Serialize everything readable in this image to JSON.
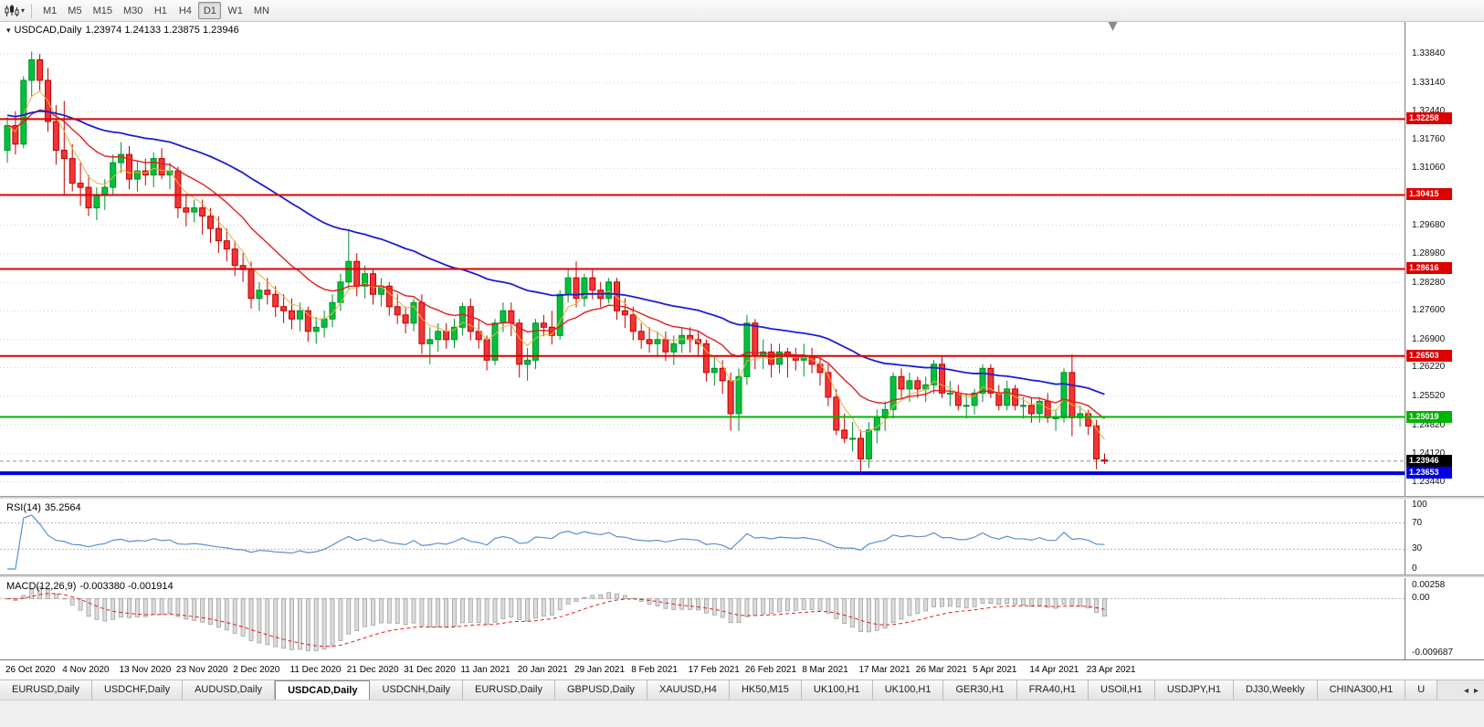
{
  "toolbar": {
    "timeframes": [
      "M1",
      "M5",
      "M15",
      "M30",
      "H1",
      "H4",
      "D1",
      "W1",
      "MN"
    ],
    "active_timeframe": "D1",
    "dropdown_icon": "▾"
  },
  "chart": {
    "title_symbol": "USDCAD,Daily",
    "title_ohlc": "1.23974 1.24133 1.23875 1.23946",
    "oct_arrow": "▾",
    "price_min": 1.231,
    "price_max": 1.3462,
    "price_axis_labels": [
      "1.33840",
      "1.33140",
      "1.32440",
      "1.31760",
      "1.31060",
      "1.30360",
      "1.29680",
      "1.28980",
      "1.28280",
      "1.27600",
      "1.26900",
      "1.26220",
      "1.25520",
      "1.24820",
      "1.24120",
      "1.23440"
    ],
    "bid": {
      "label": "1.23946",
      "price": 1.23946,
      "box_color": "#000000",
      "text_color": "#ffffff"
    },
    "hlines": [
      {
        "price": 1.32258,
        "label": "1.32258",
        "color": "#dd0000",
        "width": 2
      },
      {
        "price": 1.30415,
        "label": "1.30415",
        "color": "#dd0000",
        "width": 2
      },
      {
        "price": 1.28616,
        "label": "1.28616",
        "color": "#dd0000",
        "width": 2
      },
      {
        "price": 1.26503,
        "label": "1.26503",
        "color": "#dd0000",
        "width": 2
      },
      {
        "price": 1.25019,
        "label": "1.25019",
        "color": "#00b400",
        "width": 2
      },
      {
        "price": 1.23653,
        "label": "1.23653",
        "color": "#0000e0",
        "width": 4
      }
    ],
    "colors": {
      "bull_fill": "#00c23a",
      "bull_edge": "#008f2a",
      "bear_fill": "#f23535",
      "bear_edge": "#c00000",
      "ma_fast": "#e8b23a",
      "ma_mid": "#e02020",
      "ma_slow": "#1d1dd4",
      "grid": "#d0d0d0",
      "bid_line": "#909090"
    }
  },
  "rsi": {
    "label": "RSI(14)",
    "value": "35.2564",
    "scale_labels": [
      "100",
      "70",
      "30",
      "0"
    ],
    "levels": [
      70,
      30
    ],
    "color": "#5c8fce"
  },
  "macd": {
    "label": "MACD(12,26,9)",
    "values": "-0.003380 -0.001914",
    "scale_top": "0.00258",
    "scale_zero": "0.00",
    "scale_bottom": "-0.009687",
    "histogram_color": "#c0c0c0",
    "signal_color": "#e02020"
  },
  "time_axis": {
    "bars_per_label": 7,
    "labels": [
      "26 Oct 2020",
      "4 Nov 2020",
      "13 Nov 2020",
      "23 Nov 2020",
      "2 Dec 2020",
      "11 Dec 2020",
      "21 Dec 2020",
      "31 Dec 2020",
      "11 Jan 2021",
      "20 Jan 2021",
      "29 Jan 2021",
      "8 Feb 2021",
      "17 Feb 2021",
      "26 Feb 2021",
      "8 Mar 2021",
      "17 Mar 2021",
      "26 Mar 2021",
      "5 Apr 2021",
      "14 Apr 2021",
      "23 Apr 2021"
    ]
  },
  "tabs": {
    "items": [
      "EURUSD,Daily",
      "USDCHF,Daily",
      "AUDUSD,Daily",
      "USDCAD,Daily",
      "USDCNH,Daily",
      "EURUSD,Daily",
      "GBPUSD,Daily",
      "XAUUSD,H4",
      "HK50,M15",
      "UK100,H1",
      "UK100,H1",
      "GER30,H1",
      "FRA40,H1",
      "USOil,H1",
      "USDJPY,H1",
      "DJ30,Weekly",
      "CHINA300,H1",
      "U"
    ],
    "active_index": 3,
    "scroll_left_icon": "◂",
    "scroll_right_icon": "▸"
  },
  "chart_data": {
    "type": "candlestick",
    "symbol": "USDCAD",
    "period": "Daily",
    "ohlc_current": {
      "open": 1.23974,
      "high": 1.24133,
      "low": 1.23875,
      "close": 1.23946
    },
    "indicators": [
      "RSI(14)=35.2564",
      "MACD(12,26,9)=-0.003380/-0.001914"
    ],
    "support_resistance": [
      1.32258,
      1.30415,
      1.28616,
      1.26503,
      1.25019,
      1.23653
    ],
    "candles": [
      [
        1.315,
        1.323,
        1.312,
        1.321
      ],
      [
        1.321,
        1.3245,
        1.314,
        1.3165
      ],
      [
        1.3165,
        1.333,
        1.3155,
        1.332
      ],
      [
        1.332,
        1.339,
        1.328,
        1.337
      ],
      [
        1.337,
        1.3384,
        1.3295,
        1.332
      ],
      [
        1.332,
        1.335,
        1.3195,
        1.322
      ],
      [
        1.322,
        1.326,
        1.3115,
        1.315
      ],
      [
        1.315,
        1.327,
        1.304,
        1.313
      ],
      [
        1.313,
        1.3165,
        1.305,
        1.307
      ],
      [
        1.307,
        1.312,
        1.3015,
        1.306
      ],
      [
        1.306,
        1.309,
        1.299,
        1.301
      ],
      [
        1.301,
        1.306,
        1.298,
        1.304
      ],
      [
        1.304,
        1.308,
        1.3005,
        1.306
      ],
      [
        1.306,
        1.314,
        1.304,
        1.312
      ],
      [
        1.312,
        1.317,
        1.3095,
        1.314
      ],
      [
        1.314,
        1.316,
        1.3055,
        1.308
      ],
      [
        1.308,
        1.3125,
        1.305,
        1.31
      ],
      [
        1.31,
        1.313,
        1.3065,
        1.309
      ],
      [
        1.309,
        1.3145,
        1.306,
        1.313
      ],
      [
        1.313,
        1.3155,
        1.308,
        1.309
      ],
      [
        1.309,
        1.312,
        1.3055,
        1.31
      ],
      [
        1.31,
        1.311,
        1.2985,
        1.301
      ],
      [
        1.301,
        1.304,
        1.2965,
        1.3
      ],
      [
        1.3,
        1.303,
        1.2975,
        1.301
      ],
      [
        1.301,
        1.303,
        1.2945,
        1.299
      ],
      [
        1.299,
        1.301,
        1.2925,
        1.296
      ],
      [
        1.296,
        1.299,
        1.29,
        1.293
      ],
      [
        1.293,
        1.296,
        1.288,
        1.291
      ],
      [
        1.291,
        1.293,
        1.2845,
        1.287
      ],
      [
        1.287,
        1.29,
        1.283,
        1.286
      ],
      [
        1.286,
        1.288,
        1.2765,
        1.279
      ],
      [
        1.279,
        1.283,
        1.276,
        1.281
      ],
      [
        1.281,
        1.284,
        1.2775,
        1.28
      ],
      [
        1.28,
        1.282,
        1.2745,
        1.277
      ],
      [
        1.277,
        1.28,
        1.273,
        1.276
      ],
      [
        1.276,
        1.279,
        1.2715,
        1.274
      ],
      [
        1.274,
        1.278,
        1.271,
        1.276
      ],
      [
        1.276,
        1.277,
        1.2685,
        1.271
      ],
      [
        1.271,
        1.2745,
        1.268,
        1.272
      ],
      [
        1.272,
        1.276,
        1.2695,
        1.274
      ],
      [
        1.274,
        1.28,
        1.272,
        1.278
      ],
      [
        1.278,
        1.285,
        1.276,
        1.283
      ],
      [
        1.283,
        1.2958,
        1.281,
        1.288
      ],
      [
        1.288,
        1.29,
        1.2795,
        1.282
      ],
      [
        1.282,
        1.287,
        1.279,
        1.285
      ],
      [
        1.285,
        1.286,
        1.2775,
        1.28
      ],
      [
        1.28,
        1.284,
        1.277,
        1.282
      ],
      [
        1.282,
        1.283,
        1.2748,
        1.277
      ],
      [
        1.277,
        1.28,
        1.2728,
        1.275
      ],
      [
        1.275,
        1.277,
        1.2705,
        1.273
      ],
      [
        1.273,
        1.279,
        1.271,
        1.278
      ],
      [
        1.278,
        1.28,
        1.2655,
        1.268
      ],
      [
        1.268,
        1.272,
        1.263,
        1.269
      ],
      [
        1.269,
        1.273,
        1.266,
        1.271
      ],
      [
        1.271,
        1.273,
        1.2668,
        1.269
      ],
      [
        1.269,
        1.274,
        1.267,
        1.272
      ],
      [
        1.272,
        1.278,
        1.27,
        1.277
      ],
      [
        1.277,
        1.279,
        1.2688,
        1.271
      ],
      [
        1.271,
        1.274,
        1.2668,
        1.269
      ],
      [
        1.269,
        1.27,
        1.2615,
        1.264
      ],
      [
        1.264,
        1.274,
        1.2628,
        1.273
      ],
      [
        1.273,
        1.278,
        1.2708,
        1.276
      ],
      [
        1.276,
        1.278,
        1.2698,
        1.273
      ],
      [
        1.273,
        1.274,
        1.2598,
        1.263
      ],
      [
        1.263,
        1.267,
        1.259,
        1.264
      ],
      [
        1.264,
        1.274,
        1.2618,
        1.273
      ],
      [
        1.273,
        1.275,
        1.2698,
        1.272
      ],
      [
        1.272,
        1.276,
        1.2678,
        1.27
      ],
      [
        1.27,
        1.281,
        1.269,
        1.28
      ],
      [
        1.28,
        1.286,
        1.278,
        1.284
      ],
      [
        1.284,
        1.288,
        1.2768,
        1.279
      ],
      [
        1.279,
        1.285,
        1.277,
        1.284
      ],
      [
        1.284,
        1.286,
        1.2788,
        1.281
      ],
      [
        1.281,
        1.283,
        1.2768,
        1.279
      ],
      [
        1.279,
        1.284,
        1.2778,
        1.283
      ],
      [
        1.283,
        1.284,
        1.2738,
        1.276
      ],
      [
        1.276,
        1.279,
        1.2718,
        1.275
      ],
      [
        1.275,
        1.277,
        1.2688,
        1.271
      ],
      [
        1.271,
        1.273,
        1.2668,
        1.269
      ],
      [
        1.269,
        1.272,
        1.2658,
        1.268
      ],
      [
        1.268,
        1.271,
        1.2648,
        1.269
      ],
      [
        1.269,
        1.271,
        1.2638,
        1.266
      ],
      [
        1.266,
        1.27,
        1.2628,
        1.268
      ],
      [
        1.268,
        1.272,
        1.2658,
        1.27
      ],
      [
        1.27,
        1.272,
        1.2658,
        1.269
      ],
      [
        1.269,
        1.271,
        1.2648,
        1.268
      ],
      [
        1.268,
        1.269,
        1.2588,
        1.261
      ],
      [
        1.261,
        1.265,
        1.2578,
        1.262
      ],
      [
        1.262,
        1.264,
        1.2558,
        1.259
      ],
      [
        1.259,
        1.261,
        1.2468,
        1.251
      ],
      [
        1.251,
        1.262,
        1.2468,
        1.26
      ],
      [
        1.26,
        1.275,
        1.258,
        1.273
      ],
      [
        1.273,
        1.274,
        1.2618,
        1.265
      ],
      [
        1.265,
        1.269,
        1.2618,
        1.266
      ],
      [
        1.266,
        1.268,
        1.2598,
        1.263
      ],
      [
        1.263,
        1.268,
        1.2608,
        1.266
      ],
      [
        1.266,
        1.267,
        1.2598,
        1.265
      ],
      [
        1.265,
        1.267,
        1.2615,
        1.264
      ],
      [
        1.264,
        1.268,
        1.26,
        1.265
      ],
      [
        1.265,
        1.267,
        1.2608,
        1.263
      ],
      [
        1.263,
        1.265,
        1.2578,
        1.261
      ],
      [
        1.261,
        1.263,
        1.2528,
        1.255
      ],
      [
        1.255,
        1.257,
        1.2458,
        1.247
      ],
      [
        1.247,
        1.251,
        1.2438,
        1.245
      ],
      [
        1.245,
        1.249,
        1.2418,
        1.245
      ],
      [
        1.245,
        1.247,
        1.2365,
        1.24
      ],
      [
        1.24,
        1.249,
        1.2378,
        1.247
      ],
      [
        1.247,
        1.252,
        1.2438,
        1.25
      ],
      [
        1.25,
        1.254,
        1.2468,
        1.252
      ],
      [
        1.252,
        1.261,
        1.2498,
        1.26
      ],
      [
        1.26,
        1.262,
        1.2548,
        1.257
      ],
      [
        1.257,
        1.261,
        1.2538,
        1.259
      ],
      [
        1.259,
        1.26,
        1.2548,
        1.257
      ],
      [
        1.257,
        1.26,
        1.2538,
        1.258
      ],
      [
        1.258,
        1.264,
        1.2558,
        1.263
      ],
      [
        1.263,
        1.265,
        1.2548,
        1.256
      ],
      [
        1.256,
        1.259,
        1.2528,
        1.256
      ],
      [
        1.256,
        1.258,
        1.2518,
        1.253
      ],
      [
        1.253,
        1.256,
        1.2498,
        1.253
      ],
      [
        1.253,
        1.257,
        1.2508,
        1.256
      ],
      [
        1.256,
        1.263,
        1.2538,
        1.262
      ],
      [
        1.262,
        1.263,
        1.2548,
        1.256
      ],
      [
        1.256,
        1.258,
        1.2518,
        1.253
      ],
      [
        1.253,
        1.259,
        1.2518,
        1.257
      ],
      [
        1.257,
        1.258,
        1.2518,
        1.253
      ],
      [
        1.253,
        1.255,
        1.2498,
        1.253
      ],
      [
        1.253,
        1.255,
        1.2488,
        1.251
      ],
      [
        1.251,
        1.255,
        1.2488,
        1.254
      ],
      [
        1.254,
        1.256,
        1.2488,
        1.25
      ],
      [
        1.25,
        1.252,
        1.2468,
        1.25
      ],
      [
        1.25,
        1.262,
        1.2488,
        1.261
      ],
      [
        1.261,
        1.2654,
        1.2455,
        1.25
      ],
      [
        1.25,
        1.253,
        1.2478,
        1.251
      ],
      [
        1.251,
        1.252,
        1.2458,
        1.248
      ],
      [
        1.248,
        1.2495,
        1.2375,
        1.24
      ],
      [
        1.23974,
        1.24133,
        1.23875,
        1.23946
      ]
    ]
  }
}
